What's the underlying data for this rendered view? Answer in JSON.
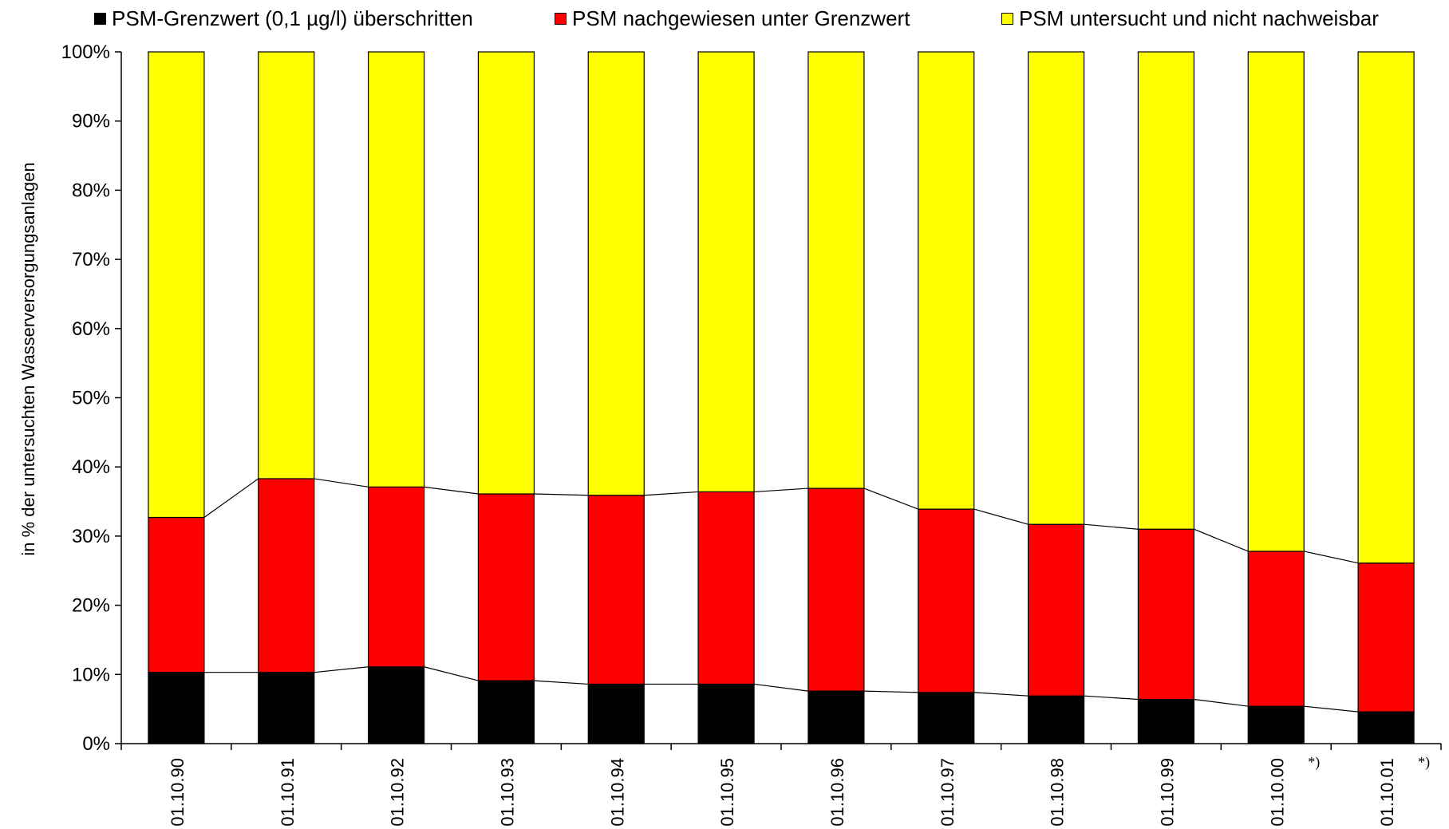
{
  "chart_data": {
    "type": "bar",
    "stacked": true,
    "title": "",
    "xlabel": "",
    "ylabel": "in % der untersuchten Wasserversorgungsanlagen",
    "ylim": [
      0,
      100
    ],
    "yticks": [
      "0%",
      "10%",
      "20%",
      "30%",
      "40%",
      "50%",
      "60%",
      "70%",
      "80%",
      "90%",
      "100%"
    ],
    "legend_position": "top",
    "categories": [
      "01.10.90",
      "01.10.91",
      "01.10.92",
      "01.10.93",
      "01.10.94",
      "01.10.95",
      "01.10.96",
      "01.10.97",
      "01.10.98",
      "01.10.99",
      "01.10.00",
      "01.10.01"
    ],
    "category_annotations": [
      "",
      "",
      "",
      "",
      "",
      "",
      "",
      "",
      "",
      "",
      "*)",
      "*)"
    ],
    "series": [
      {
        "name": "PSM-Grenzwert (0,1 µg/l) überschritten",
        "color": "#000000",
        "values": [
          10.3,
          10.3,
          11.1,
          9.1,
          8.6,
          8.6,
          7.6,
          7.4,
          6.9,
          6.4,
          5.4,
          4.6
        ]
      },
      {
        "name": "PSM nachgewiesen unter Grenzwert",
        "color": "#ff0000",
        "values": [
          22.4,
          28.0,
          26.0,
          27.0,
          27.3,
          27.8,
          29.3,
          26.5,
          24.8,
          24.6,
          22.4,
          21.5
        ]
      },
      {
        "name": "PSM untersucht und nicht nachweisbar",
        "color": "#ffff00",
        "values": [
          67.3,
          61.7,
          62.9,
          63.9,
          64.1,
          63.6,
          63.1,
          66.1,
          68.3,
          69.0,
          72.2,
          73.9
        ]
      }
    ],
    "series_lines": true,
    "grid": false
  }
}
